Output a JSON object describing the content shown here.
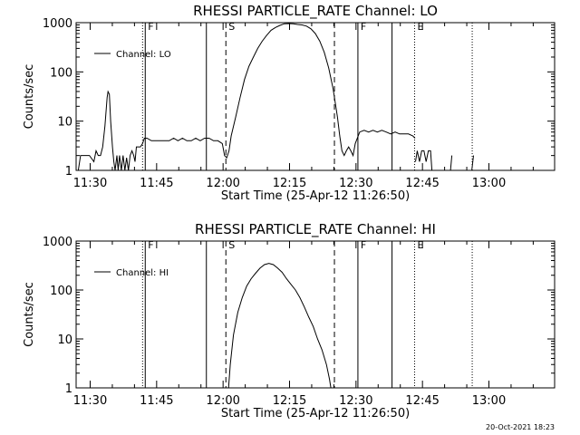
{
  "footer": {
    "timestamp": "20-Oct-2021 18:23"
  },
  "chart_data": [
    {
      "type": "line",
      "title": "RHESSI PARTICLE_RATE Channel: LO",
      "xlabel": "Start Time (25-Apr-12 11:26:50)",
      "ylabel": "Counts/sec",
      "x_units": "minutes after 11:26:50",
      "xlim": [
        0,
        108
      ],
      "ylim": [
        1,
        1000
      ],
      "yscale": "log",
      "x_ticks": [
        {
          "x": 3.17,
          "label": "11:30"
        },
        {
          "x": 18.17,
          "label": "11:45"
        },
        {
          "x": 33.17,
          "label": "12:00"
        },
        {
          "x": 48.17,
          "label": "12:15"
        },
        {
          "x": 63.17,
          "label": "12:30"
        },
        {
          "x": 78.17,
          "label": "12:45"
        },
        {
          "x": 93.17,
          "label": "13:00"
        }
      ],
      "y_ticks": [
        {
          "y": 1,
          "label": "1"
        },
        {
          "y": 10,
          "label": "10"
        },
        {
          "y": 100,
          "label": "100"
        },
        {
          "y": 1000,
          "label": "1000"
        }
      ],
      "grid": false,
      "legend": {
        "position": "top-left",
        "entries": [
          "Channel: LO"
        ]
      },
      "vlines": [
        {
          "x": 15.0,
          "style": "dotted",
          "label": ""
        },
        {
          "x": 15.6,
          "style": "solid",
          "label": "F"
        },
        {
          "x": 29.4,
          "style": "solid",
          "label": ""
        },
        {
          "x": 33.8,
          "style": "dashed",
          "label": "S"
        },
        {
          "x": 58.3,
          "style": "dashed",
          "label": ""
        },
        {
          "x": 63.6,
          "style": "solid",
          "label": "F"
        },
        {
          "x": 71.3,
          "style": "solid",
          "label": ""
        },
        {
          "x": 76.4,
          "style": "dotted",
          "label": "E"
        },
        {
          "x": 89.4,
          "style": "dotted",
          "label": ""
        }
      ],
      "series": [
        {
          "name": "Channel: LO",
          "segments": [
            [
              [
                0.5,
                1
              ],
              [
                1,
                2
              ],
              [
                3,
                2
              ],
              [
                4,
                1.5
              ],
              [
                4.5,
                2.5
              ],
              [
                5,
                2
              ],
              [
                5.5,
                2
              ],
              [
                6,
                3
              ],
              [
                6.5,
                8
              ],
              [
                7,
                30
              ],
              [
                7.2,
                40
              ],
              [
                7.5,
                35
              ],
              [
                7.8,
                10
              ],
              [
                8.2,
                3
              ],
              [
                8.5,
                1.5
              ],
              [
                8.8,
                1
              ],
              [
                9.2,
                2
              ],
              [
                9.5,
                1
              ],
              [
                9.8,
                2
              ],
              [
                10.2,
                1
              ],
              [
                10.6,
                2
              ],
              [
                11,
                1
              ],
              [
                11.4,
                1.8
              ],
              [
                11.8,
                1
              ],
              [
                12.2,
                2
              ],
              [
                12.6,
                2.5
              ],
              [
                13,
                2
              ],
              [
                13.3,
                1.5
              ],
              [
                13.6,
                3
              ],
              [
                14,
                3
              ],
              [
                14.5,
                3
              ],
              [
                15,
                3.5
              ],
              [
                15.4,
                4.5
              ],
              [
                16,
                4.5
              ],
              [
                17,
                4
              ],
              [
                18,
                4
              ],
              [
                19,
                4
              ],
              [
                20,
                4
              ],
              [
                21,
                4
              ],
              [
                22,
                4.5
              ],
              [
                23,
                4
              ],
              [
                24,
                4.5
              ],
              [
                25,
                4
              ],
              [
                26,
                4
              ],
              [
                27,
                4.5
              ],
              [
                28,
                4
              ],
              [
                29,
                4.5
              ],
              [
                30,
                4.5
              ],
              [
                31,
                4
              ],
              [
                32,
                4
              ],
              [
                33,
                3.5
              ],
              [
                33.5,
                2
              ],
              [
                34,
                1.8
              ],
              [
                34.5,
                2.5
              ],
              [
                35,
                5
              ],
              [
                36,
                12
              ],
              [
                37,
                30
              ],
              [
                38,
                70
              ],
              [
                39,
                130
              ],
              [
                40,
                200
              ],
              [
                41,
                300
              ],
              [
                42,
                420
              ],
              [
                43,
                550
              ],
              [
                44,
                700
              ],
              [
                45,
                800
              ],
              [
                46,
                880
              ],
              [
                47,
                950
              ],
              [
                48,
                960
              ],
              [
                49,
                950
              ],
              [
                50,
                920
              ],
              [
                51,
                900
              ],
              [
                52,
                850
              ],
              [
                53,
                750
              ],
              [
                54,
                600
              ],
              [
                55,
                420
              ],
              [
                56,
                250
              ],
              [
                57,
                120
              ],
              [
                58,
                45
              ],
              [
                59,
                12
              ],
              [
                59.5,
                5
              ],
              [
                60,
                2.5
              ],
              [
                60.5,
                2
              ],
              [
                61,
                2.5
              ],
              [
                61.5,
                3
              ],
              [
                62,
                2.5
              ],
              [
                62.5,
                2
              ],
              [
                63,
                3.5
              ],
              [
                64,
                6
              ],
              [
                65,
                6.5
              ],
              [
                66,
                6
              ],
              [
                67,
                6.5
              ],
              [
                68,
                6
              ],
              [
                69,
                6.5
              ],
              [
                70,
                6
              ],
              [
                71,
                5.5
              ],
              [
                72,
                6
              ],
              [
                73,
                5.5
              ],
              [
                74,
                5.5
              ],
              [
                75,
                5.5
              ],
              [
                76,
                5
              ],
              [
                76.5,
                4.5
              ]
            ],
            [
              [
                76.6,
                1.5
              ],
              [
                77,
                2.5
              ],
              [
                77.5,
                1.5
              ],
              [
                78,
                2.5
              ],
              [
                78.5,
                2.5
              ],
              [
                79,
                1.5
              ],
              [
                79.5,
                2.5
              ],
              [
                80,
                2.5
              ],
              [
                80.3,
                1
              ]
            ],
            [
              [
                84.5,
                1
              ],
              [
                84.8,
                2
              ]
            ],
            [
              [
                89.3,
                1
              ],
              [
                89.7,
                2
              ]
            ]
          ]
        }
      ]
    },
    {
      "type": "line",
      "title": "RHESSI PARTICLE_RATE Channel: HI",
      "xlabel": "Start Time (25-Apr-12 11:26:50)",
      "ylabel": "Counts/sec",
      "x_units": "minutes after 11:26:50",
      "xlim": [
        0,
        108
      ],
      "ylim": [
        1,
        1000
      ],
      "yscale": "log",
      "x_ticks": [
        {
          "x": 3.17,
          "label": "11:30"
        },
        {
          "x": 18.17,
          "label": "11:45"
        },
        {
          "x": 33.17,
          "label": "12:00"
        },
        {
          "x": 48.17,
          "label": "12:15"
        },
        {
          "x": 63.17,
          "label": "12:30"
        },
        {
          "x": 78.17,
          "label": "12:45"
        },
        {
          "x": 93.17,
          "label": "13:00"
        }
      ],
      "y_ticks": [
        {
          "y": 1,
          "label": "1"
        },
        {
          "y": 10,
          "label": "10"
        },
        {
          "y": 100,
          "label": "100"
        },
        {
          "y": 1000,
          "label": "1000"
        }
      ],
      "grid": false,
      "legend": {
        "position": "top-left",
        "entries": [
          "Channel: HI"
        ]
      },
      "vlines": [
        {
          "x": 15.0,
          "style": "dotted",
          "label": ""
        },
        {
          "x": 15.6,
          "style": "solid",
          "label": "F"
        },
        {
          "x": 29.4,
          "style": "solid",
          "label": ""
        },
        {
          "x": 33.8,
          "style": "dashed",
          "label": "S"
        },
        {
          "x": 58.3,
          "style": "dashed",
          "label": ""
        },
        {
          "x": 63.6,
          "style": "solid",
          "label": "F"
        },
        {
          "x": 71.3,
          "style": "solid",
          "label": ""
        },
        {
          "x": 76.4,
          "style": "dotted",
          "label": "E"
        },
        {
          "x": 89.4,
          "style": "dotted",
          "label": ""
        }
      ],
      "series": [
        {
          "name": "Channel: HI",
          "segments": [
            [
              [
                34.4,
                1
              ],
              [
                34.8,
                3
              ],
              [
                35.5,
                12
              ],
              [
                36.5,
                35
              ],
              [
                37.5,
                70
              ],
              [
                38.5,
                120
              ],
              [
                39.5,
                170
              ],
              [
                40.5,
                220
              ],
              [
                41.5,
                280
              ],
              [
                42.5,
                330
              ],
              [
                43.5,
                350
              ],
              [
                44.5,
                330
              ],
              [
                45.5,
                280
              ],
              [
                46.5,
                230
              ],
              [
                47.5,
                170
              ],
              [
                48.5,
                130
              ],
              [
                49.5,
                100
              ],
              [
                50.5,
                70
              ],
              [
                51.5,
                45
              ],
              [
                52.5,
                28
              ],
              [
                53.5,
                18
              ],
              [
                54.5,
                10
              ],
              [
                55.5,
                6
              ],
              [
                56.5,
                3
              ],
              [
                57.2,
                1.5
              ],
              [
                57.5,
                1
              ]
            ]
          ]
        }
      ]
    }
  ]
}
